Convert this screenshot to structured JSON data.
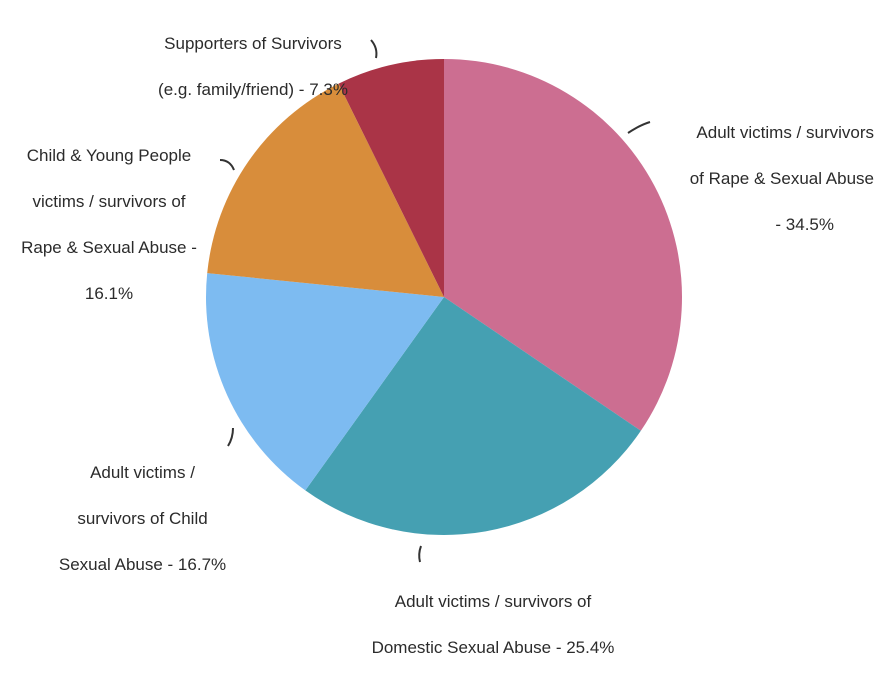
{
  "chart_data": {
    "type": "pie",
    "slices": [
      {
        "label_lines": [
          "Adult victims / survivors",
          "of Rape & Sexual Abuse",
          "- 34.5%"
        ],
        "value": 34.5,
        "color": "#cc6e91"
      },
      {
        "label_lines": [
          "Adult victims / survivors of",
          "Domestic Sexual Abuse - 25.4%"
        ],
        "value": 25.4,
        "color": "#45a0b2"
      },
      {
        "label_lines": [
          "Adult victims /",
          "survivors of Child",
          "Sexual Abuse - 16.7%"
        ],
        "value": 16.7,
        "color": "#7dbbf1"
      },
      {
        "label_lines": [
          "Child & Young People",
          "victims / survivors of",
          "Rape & Sexual Abuse -",
          "16.1%"
        ],
        "value": 16.1,
        "color": "#d88d3b"
      },
      {
        "label_lines": [
          "Supporters of Survivors",
          "(e.g. family/friend) - 7.3%"
        ],
        "value": 7.3,
        "color": "#aa3447"
      }
    ],
    "start_angle": "top, clockwise",
    "legend": "none"
  }
}
